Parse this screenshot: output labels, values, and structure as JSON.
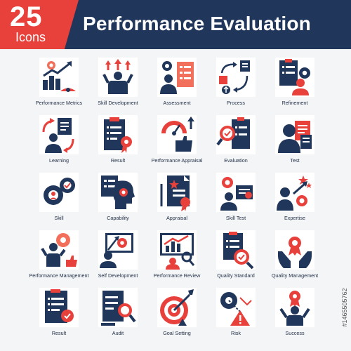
{
  "header": {
    "count": "25",
    "count_label": "Icons",
    "title": "Performance Evaluation"
  },
  "colors": {
    "navy": "#20365a",
    "coral": "#e8403b",
    "light_coral": "#f2705b",
    "background": "#f4f5f7"
  },
  "watermark": "#1465505762",
  "icons": [
    {
      "label": "Performance Metrics",
      "icon": "metrics-chart-icon"
    },
    {
      "label": "Skill Development",
      "icon": "skill-development-icon"
    },
    {
      "label": "Assessment",
      "icon": "assessment-checklist-icon"
    },
    {
      "label": "Process",
      "icon": "process-flow-icon"
    },
    {
      "label": "Refinement",
      "icon": "refinement-clipboard-icon"
    },
    {
      "label": "Learning",
      "icon": "learning-cycle-icon"
    },
    {
      "label": "Result",
      "icon": "result-clipboard-icon"
    },
    {
      "label": "Performance Appraisal",
      "icon": "appraisal-gauge-icon"
    },
    {
      "label": "Evaluation",
      "icon": "evaluation-magnifier-icon"
    },
    {
      "label": "Test",
      "icon": "test-document-icon"
    },
    {
      "label": "Skill",
      "icon": "skill-gears-icon"
    },
    {
      "label": "Capability",
      "icon": "capability-head-icon"
    },
    {
      "label": "Appraisal",
      "icon": "appraisal-document-icon"
    },
    {
      "label": "Skill Test",
      "icon": "skill-test-icon"
    },
    {
      "label": "Expertise",
      "icon": "expertise-icon"
    },
    {
      "label": "Performance Management",
      "icon": "performance-management-icon"
    },
    {
      "label": "Self Development",
      "icon": "self-development-icon"
    },
    {
      "label": "Performance Review",
      "icon": "performance-review-icon"
    },
    {
      "label": "Quality Standard",
      "icon": "quality-standard-icon"
    },
    {
      "label": "Quality Management",
      "icon": "quality-management-icon"
    },
    {
      "label": "Result",
      "icon": "result-document-icon"
    },
    {
      "label": "Audit",
      "icon": "audit-icon"
    },
    {
      "label": "Goal Setting",
      "icon": "goal-setting-icon"
    },
    {
      "label": "Risk",
      "icon": "risk-icon"
    },
    {
      "label": "Success",
      "icon": "success-icon"
    }
  ]
}
